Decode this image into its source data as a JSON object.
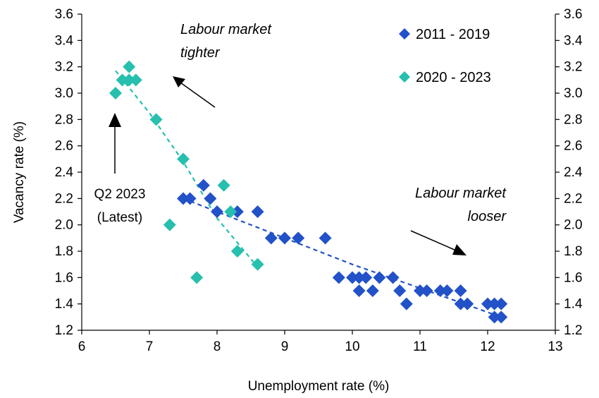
{
  "chart_data": {
    "type": "scatter",
    "title": "",
    "xlabel": "Unemployment rate (%)",
    "ylabel": "Vacancy rate (%)",
    "xlim": [
      6,
      13
    ],
    "ylim": [
      1.2,
      3.6
    ],
    "x_ticks": [
      6,
      7,
      8,
      9,
      10,
      11,
      12,
      13
    ],
    "y_ticks": [
      1.2,
      1.4,
      1.6,
      1.8,
      2.0,
      2.2,
      2.4,
      2.6,
      2.8,
      3.0,
      3.2,
      3.4,
      3.6
    ],
    "x_tick_labels": [
      "6",
      "7",
      "8",
      "9",
      "10",
      "11",
      "12",
      "13"
    ],
    "y_tick_labels": [
      "1.2",
      "1.4",
      "1.6",
      "1.8",
      "2.0",
      "2.2",
      "2.4",
      "2.6",
      "2.8",
      "3.0",
      "3.2",
      "3.4",
      "3.6"
    ],
    "grid": false,
    "legend_position": "top-right",
    "series": [
      {
        "name": "2011 - 2019",
        "color": "#2251c8",
        "marker": "diamond",
        "points": [
          [
            7.5,
            2.2
          ],
          [
            7.6,
            2.2
          ],
          [
            7.8,
            2.3
          ],
          [
            7.9,
            2.2
          ],
          [
            8.0,
            2.1
          ],
          [
            8.3,
            2.1
          ],
          [
            8.6,
            2.1
          ],
          [
            8.8,
            1.9
          ],
          [
            9.0,
            1.9
          ],
          [
            9.2,
            1.9
          ],
          [
            9.6,
            1.9
          ],
          [
            9.8,
            1.6
          ],
          [
            10.0,
            1.6
          ],
          [
            10.1,
            1.6
          ],
          [
            10.1,
            1.5
          ],
          [
            10.2,
            1.6
          ],
          [
            10.3,
            1.5
          ],
          [
            10.4,
            1.6
          ],
          [
            10.6,
            1.6
          ],
          [
            10.7,
            1.5
          ],
          [
            10.8,
            1.4
          ],
          [
            11.0,
            1.5
          ],
          [
            11.1,
            1.5
          ],
          [
            11.3,
            1.5
          ],
          [
            11.4,
            1.5
          ],
          [
            11.6,
            1.5
          ],
          [
            11.6,
            1.4
          ],
          [
            11.7,
            1.4
          ],
          [
            12.0,
            1.4
          ],
          [
            12.1,
            1.4
          ],
          [
            12.1,
            1.3
          ],
          [
            12.2,
            1.4
          ],
          [
            12.2,
            1.3
          ]
        ],
        "trend": [
          [
            7.5,
            2.2
          ],
          [
            8.2,
            2.06
          ],
          [
            9.0,
            1.9
          ],
          [
            10.0,
            1.7
          ],
          [
            11.0,
            1.52
          ],
          [
            12.2,
            1.3
          ]
        ]
      },
      {
        "name": "2020 - 2023",
        "color": "#27bfae",
        "marker": "diamond",
        "points": [
          [
            6.5,
            3.0
          ],
          [
            6.6,
            3.1
          ],
          [
            6.7,
            3.2
          ],
          [
            6.7,
            3.1
          ],
          [
            6.8,
            3.1
          ],
          [
            7.1,
            2.8
          ],
          [
            7.5,
            2.5
          ],
          [
            7.3,
            2.0
          ],
          [
            7.7,
            1.6
          ],
          [
            8.1,
            2.3
          ],
          [
            8.2,
            2.1
          ],
          [
            8.3,
            1.8
          ],
          [
            8.6,
            1.7
          ]
        ],
        "trend": [
          [
            6.5,
            3.17
          ],
          [
            7.0,
            2.85
          ],
          [
            7.5,
            2.48
          ],
          [
            8.0,
            2.05
          ],
          [
            8.6,
            1.68
          ]
        ]
      }
    ],
    "annotations": [
      {
        "text_lines": [
          "Labour market",
          "tighter"
        ],
        "style": "italic"
      },
      {
        "text_lines": [
          "Labour market",
          "looser"
        ],
        "style": "italic"
      },
      {
        "text_lines": [
          "Q2 2023",
          "(Latest)"
        ],
        "style": "normal",
        "points_to": [
          6.5,
          3.0
        ]
      }
    ]
  }
}
